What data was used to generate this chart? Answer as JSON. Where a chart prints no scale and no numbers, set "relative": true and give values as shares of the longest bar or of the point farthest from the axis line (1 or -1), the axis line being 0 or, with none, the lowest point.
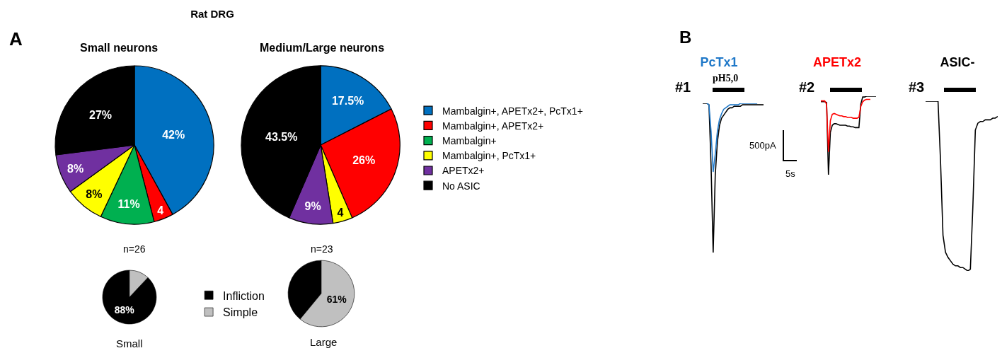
{
  "chart_data": [
    {
      "type": "pie",
      "title": "Rat DRG",
      "categories": [
        "Mambalgin+, APETx2+, PcTx1+",
        "Mambalgin+, APETx2+",
        "Mambalgin+",
        "Mambalgin+, PcTx1+",
        "APETx2+",
        "No ASIC"
      ],
      "colors": [
        "#0070c0",
        "#ff0000",
        "#00b050",
        "#ffff00",
        "#7030a0",
        "#000000"
      ],
      "legend": "right",
      "series": [
        {
          "name": "Small neurons",
          "values": [
            42,
            4,
            11,
            8,
            8,
            27
          ],
          "value_labels": [
            "42%",
            "4",
            "11%",
            "8%",
            "8%",
            "27%"
          ]
        },
        {
          "name": "Medium/Large neurons",
          "values": [
            17.5,
            26,
            null,
            4,
            9,
            43.5
          ],
          "value_labels": [
            "17.5%",
            "26%",
            null,
            "4",
            "9%",
            "43.5%"
          ]
        }
      ],
      "annotations": [
        "A",
        "n=26",
        "n=23"
      ]
    },
    {
      "type": "pie",
      "categories": [
        "Infliction",
        "Simple"
      ],
      "colors": [
        "#000000",
        "#c0c0c0"
      ],
      "legend": "right",
      "series": [
        {
          "name": "Small",
          "values": [
            88,
            12
          ],
          "value_labels": [
            "88%",
            null
          ]
        },
        {
          "name": "Large",
          "values": [
            39,
            61
          ],
          "value_labels": [
            null,
            "61%"
          ]
        }
      ]
    },
    {
      "type": "line",
      "title": "PcTx1",
      "relative": true,
      "categories": [
        null,
        null,
        null,
        null,
        null,
        null,
        null,
        null,
        null,
        null,
        null,
        null,
        null,
        null,
        null,
        null,
        null,
        null,
        null,
        null,
        null,
        null,
        null,
        null,
        null,
        null,
        null,
        null,
        null,
        null
      ],
      "series": [
        {
          "color": "#000000",
          "values": [
            1,
            1,
            1,
            0.99,
            0.585,
            0,
            0.52,
            0.74,
            0.85,
            0.9,
            0.92,
            0.94,
            0.96,
            0.97,
            0.97,
            0.98,
            0.98,
            0.98,
            0.98,
            0.99,
            0.99,
            0.99,
            0.99,
            0.99,
            0.99,
            0.99,
            0.99,
            0.99,
            0.99,
            0.99
          ]
        },
        {
          "color": "#1f78c8",
          "values": [
            null,
            null,
            1,
            0.99,
            0.81,
            0.54,
            0.66,
            0.81,
            0.89,
            0.93,
            0.96,
            0.97,
            0.98,
            0.99,
            0.99,
            0.99,
            0.99,
            0.99,
            1,
            1,
            1,
            1,
            1,
            1,
            1,
            1,
            1,
            null,
            null,
            null
          ]
        }
      ],
      "annotations": [
        "B",
        "#1",
        "pH5,0",
        "500pA",
        "5s"
      ]
    },
    {
      "type": "line",
      "title": "APETx2",
      "relative": true,
      "categories": [
        null,
        null,
        null,
        null,
        null,
        null,
        null,
        null,
        null,
        null,
        null,
        null,
        null,
        null,
        null,
        null,
        null,
        null,
        null,
        null,
        null,
        null,
        null,
        null,
        null,
        null,
        null,
        null,
        null,
        null
      ],
      "series": [
        {
          "color": "#000000",
          "values": [
            0.93,
            0.93,
            0.93,
            0.92,
            0,
            0.54,
            0.63,
            0.65,
            0.65,
            0.64,
            0.63,
            0.63,
            0.63,
            0.63,
            0.62,
            0.62,
            0.61,
            0.61,
            0.6,
            0.6,
            0.6,
            0.9,
            0.99,
            0.99,
            1,
            1,
            1,
            1,
            1,
            1
          ]
        },
        {
          "color": "#ff0000",
          "values": [
            0.94,
            0.94,
            0.94,
            0.9,
            0.29,
            0.69,
            0.77,
            0.78,
            0.77,
            0.76,
            0.75,
            0.75,
            0.74,
            0.74,
            0.73,
            0.73,
            0.73,
            0.72,
            0.72,
            0.72,
            0.73,
            0.87,
            0.93,
            0.95,
            0.96,
            0.96,
            0.96,
            null,
            null,
            null
          ]
        }
      ],
      "annotations": [
        "#2"
      ]
    },
    {
      "type": "line",
      "title": "ASIC-",
      "relative": true,
      "categories": [
        null,
        null,
        null,
        null,
        null,
        null,
        null,
        null,
        null,
        null,
        null,
        null,
        null,
        null,
        null,
        null,
        null,
        null,
        null,
        null,
        null,
        null,
        null,
        null,
        null,
        null,
        null,
        null,
        null,
        null
      ],
      "series": [
        {
          "color": "#000000",
          "values": [
            1,
            1,
            1,
            1,
            1,
            1,
            0.65,
            0.21,
            0.11,
            0.08,
            0.06,
            0.04,
            0.03,
            0.03,
            0.02,
            0.02,
            0.01,
            0,
            0.01,
            0.38,
            0.83,
            0.87,
            0.88,
            0.88,
            0.89,
            0.89,
            0.89,
            0.9,
            0.9,
            0.91
          ]
        }
      ],
      "annotations": [
        "#3"
      ]
    }
  ]
}
